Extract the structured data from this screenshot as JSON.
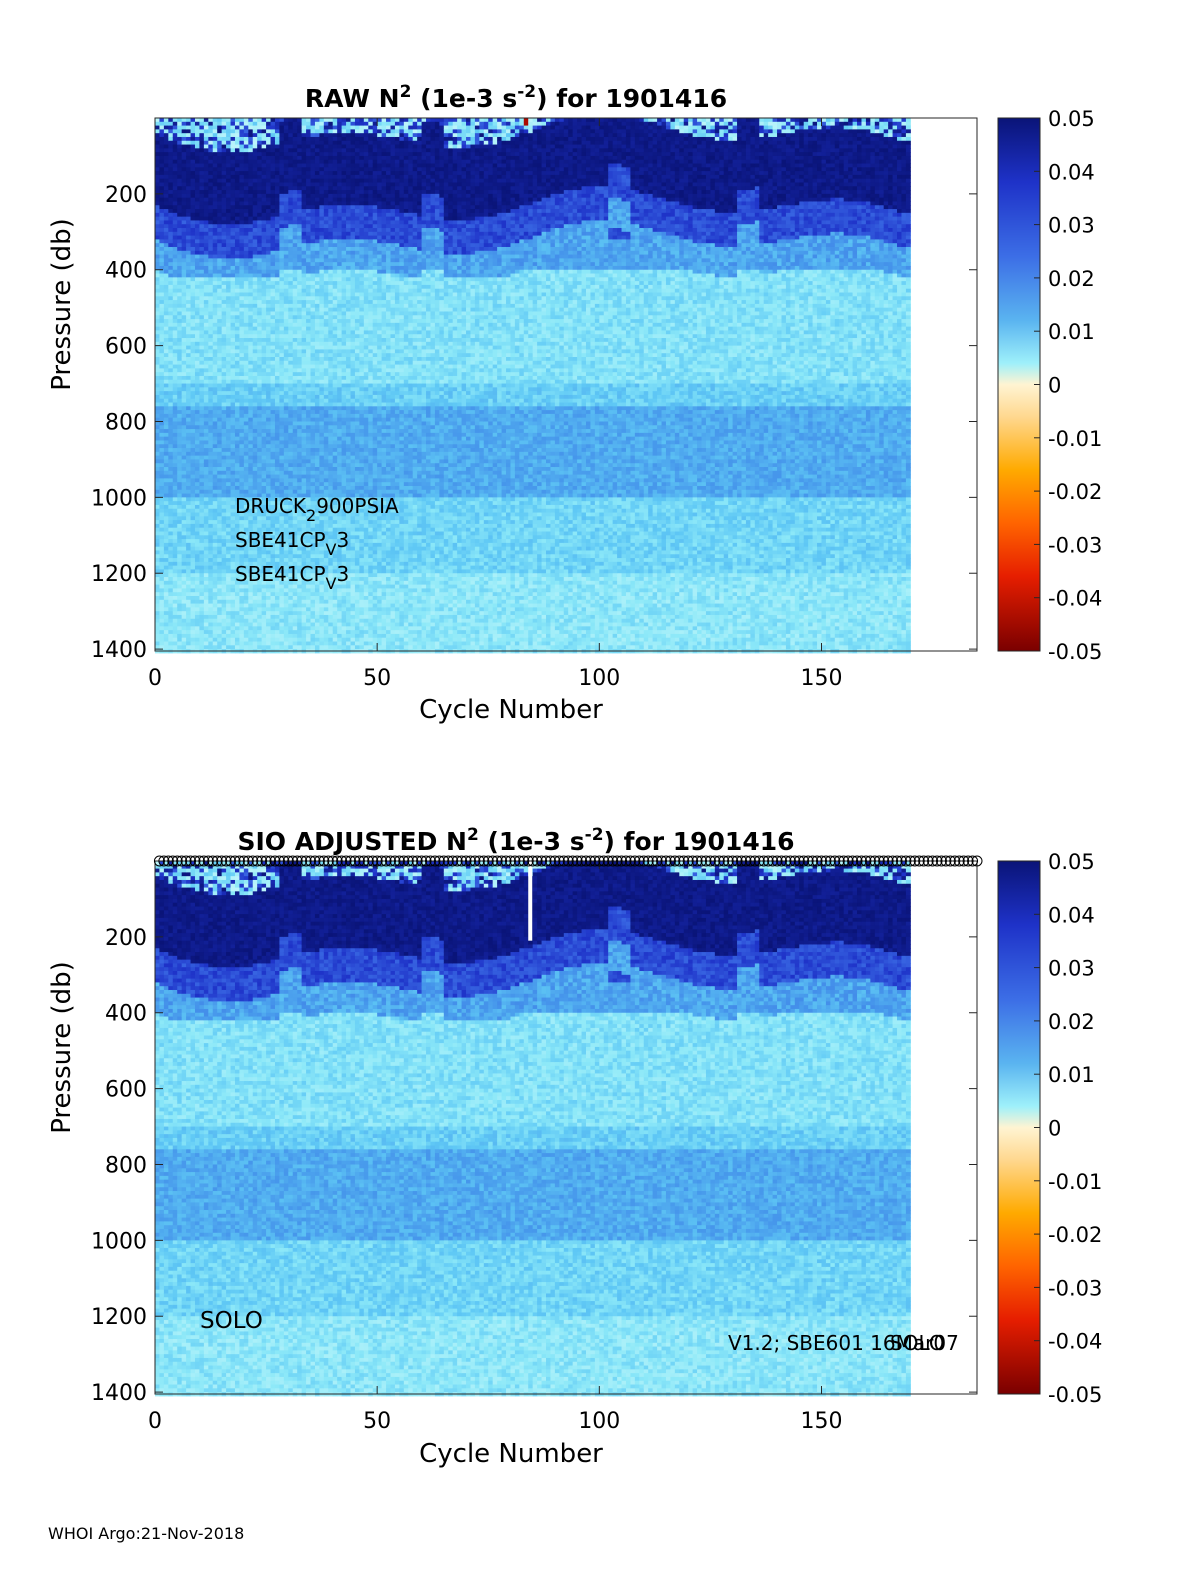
{
  "footer": "WHOI Argo:21-Nov-2018",
  "colors": {
    "deep_blue": "#0a1478",
    "mid_blue": "#3c6ee6",
    "light_cyan": "#8ee8f7",
    "zero": "#fff4d2",
    "orange": "#ffaa00",
    "dark_red": "#7a0000"
  },
  "chart_data": [
    {
      "type": "heatmap",
      "title_parts": {
        "pre": "RAW N",
        "sup1": "2",
        "mid": " (1e-3 s",
        "sup2": "-2",
        "post": ") for 1901416"
      },
      "xlabel": "Cycle Number",
      "ylabel": "Pressure (db)",
      "xlim": [
        0,
        185
      ],
      "ylim": [
        1405,
        0
      ],
      "data_xmax": 170,
      "xticks": [
        0,
        50,
        100,
        150
      ],
      "yticks": [
        200,
        400,
        600,
        800,
        1000,
        1200,
        1400
      ],
      "colorbar": {
        "range": [
          -0.05,
          0.05
        ],
        "ticks": [
          "0.05",
          "0.04",
          "0.03",
          "0.02",
          "0.01",
          "0",
          "-0.01",
          "-0.02",
          "-0.03",
          "-0.04",
          "-0.05"
        ]
      },
      "annotations": [
        {
          "pre": "DRUCK",
          "sub": "2",
          "post": "900PSIA"
        },
        {
          "pre": "SBE41CP",
          "sub": "V",
          "post": "3"
        },
        {
          "pre": "SBE41CP",
          "sub": "V",
          "post": "3"
        }
      ],
      "bands": [
        {
          "p_from": 0,
          "p_to": 40,
          "n2": 0.003,
          "note": "near-surface mixed layer, speckled"
        },
        {
          "p_from": 40,
          "p_to": 230,
          "n2": 0.05
        },
        {
          "p_from": 230,
          "p_to": 320,
          "n2": 0.035
        },
        {
          "p_from": 320,
          "p_to": 400,
          "n2": 0.018
        },
        {
          "p_from": 400,
          "p_to": 700,
          "n2": 0.009
        },
        {
          "p_from": 700,
          "p_to": 760,
          "n2": 0.012
        },
        {
          "p_from": 760,
          "p_to": 1000,
          "n2": 0.017
        },
        {
          "p_from": 1000,
          "p_to": 1200,
          "n2": 0.011
        },
        {
          "p_from": 1200,
          "p_to": 1405,
          "n2": 0.008
        }
      ]
    },
    {
      "type": "heatmap",
      "title_parts": {
        "pre": "SIO  ADJUSTED N",
        "sup1": "2",
        "mid": " (1e-3 s",
        "sup2": "-2",
        "post": ") for 1901416"
      },
      "xlabel": "Cycle Number",
      "ylabel": "Pressure (db)",
      "xlim": [
        0,
        185
      ],
      "ylim": [
        1405,
        0
      ],
      "data_xmax": 170,
      "xticks": [
        0,
        50,
        100,
        150
      ],
      "yticks": [
        200,
        400,
        600,
        800,
        1000,
        1200,
        1400
      ],
      "colorbar": {
        "range": [
          -0.05,
          0.05
        ],
        "ticks": [
          "0.05",
          "0.04",
          "0.03",
          "0.02",
          "0.01",
          "0",
          "-0.01",
          "-0.02",
          "-0.03",
          "-0.04",
          "-0.05"
        ]
      },
      "annotations": [
        {
          "text": "SOLO"
        },
        {
          "text": "V1.2; SBE601 16Mar07"
        },
        {
          "text": "SOLO"
        }
      ],
      "flag_markers": {
        "symbol": "o",
        "count": 185,
        "pressure": 0
      },
      "gap_cycle": 84,
      "bands": [
        {
          "p_from": 0,
          "p_to": 40,
          "n2": 0.003
        },
        {
          "p_from": 40,
          "p_to": 230,
          "n2": 0.05
        },
        {
          "p_from": 230,
          "p_to": 320,
          "n2": 0.035
        },
        {
          "p_from": 320,
          "p_to": 400,
          "n2": 0.018
        },
        {
          "p_from": 400,
          "p_to": 700,
          "n2": 0.009
        },
        {
          "p_from": 700,
          "p_to": 760,
          "n2": 0.012
        },
        {
          "p_from": 760,
          "p_to": 1000,
          "n2": 0.017
        },
        {
          "p_from": 1000,
          "p_to": 1200,
          "n2": 0.011
        },
        {
          "p_from": 1200,
          "p_to": 1405,
          "n2": 0.008
        }
      ]
    }
  ]
}
